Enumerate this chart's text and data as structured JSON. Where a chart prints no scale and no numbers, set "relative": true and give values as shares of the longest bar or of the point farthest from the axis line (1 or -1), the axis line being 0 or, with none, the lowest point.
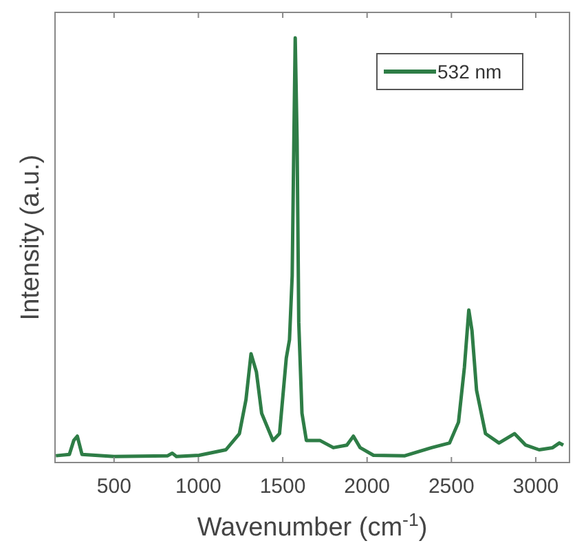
{
  "chart_data": {
    "type": "line",
    "xlabel": "Wavenumber (cm$^{-1}$)",
    "ylabel": "Intensity (a.u.)",
    "relative": true,
    "xlim": [
      150,
      3200
    ],
    "xticks": [
      500,
      1000,
      1500,
      2000,
      2500,
      3000
    ],
    "grid": false,
    "legend": "top right",
    "marker": "none",
    "line_style": "solid",
    "series": [
      {
        "name": "532 nm",
        "color": "#2e7d46",
        "x": [
          155,
          235,
          261,
          282,
          310,
          500,
          818,
          845,
          870,
          1004,
          1163,
          1243,
          1282,
          1312,
          1344,
          1375,
          1442,
          1481,
          1521,
          1540,
          1556,
          1566,
          1574,
          1585,
          1595,
          1614,
          1640,
          1720,
          1800,
          1880,
          1919,
          1959,
          2038,
          2224,
          2383,
          2489,
          2542,
          2577,
          2603,
          2622,
          2649,
          2702,
          2782,
          2874,
          2940,
          3020,
          3100,
          3140,
          3163
        ],
        "values": [
          0.016,
          0.019,
          0.052,
          0.062,
          0.019,
          0.014,
          0.016,
          0.022,
          0.014,
          0.017,
          0.03,
          0.068,
          0.148,
          0.256,
          0.213,
          0.116,
          0.052,
          0.068,
          0.246,
          0.289,
          0.44,
          0.76,
          1,
          0.76,
          0.33,
          0.116,
          0.052,
          0.052,
          0.035,
          0.041,
          0.062,
          0.035,
          0.017,
          0.016,
          0.035,
          0.046,
          0.095,
          0.224,
          0.359,
          0.31,
          0.17,
          0.068,
          0.046,
          0.068,
          0.041,
          0.03,
          0.035,
          0.046,
          0.041
        ]
      }
    ]
  }
}
